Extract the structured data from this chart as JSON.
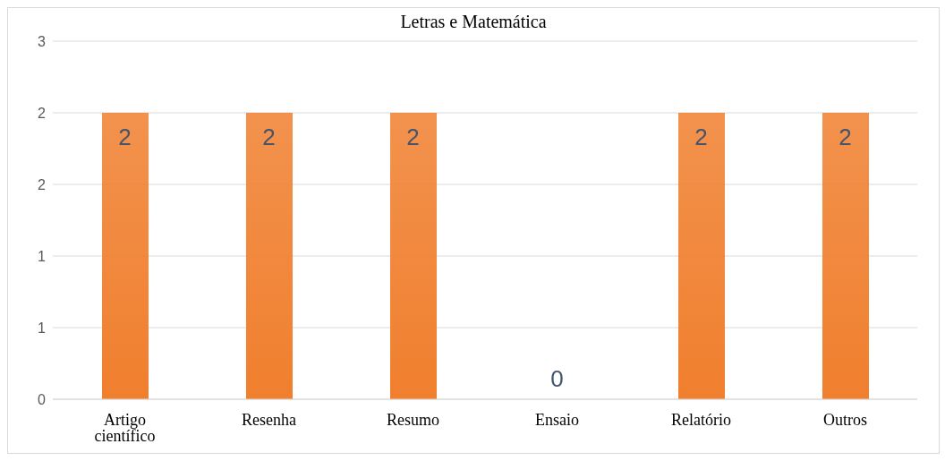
{
  "chart_data": {
    "type": "bar",
    "title": "Letras e Matemática",
    "categories": [
      "Artigo científico",
      "Resenha",
      "Resumo",
      "Ensaio",
      "Relatório",
      "Outros"
    ],
    "values": [
      2,
      2,
      2,
      0,
      2,
      2
    ],
    "color": "#f07f2e",
    "ylim": [
      0,
      2.5
    ],
    "yticks": [
      {
        "value": 0,
        "label": "0"
      },
      {
        "value": 0.5,
        "label": "1"
      },
      {
        "value": 1,
        "label": "1"
      },
      {
        "value": 1.5,
        "label": "2"
      },
      {
        "value": 2,
        "label": "2"
      },
      {
        "value": 2.5,
        "label": "3"
      }
    ],
    "grid": "y",
    "data_labels": true
  }
}
